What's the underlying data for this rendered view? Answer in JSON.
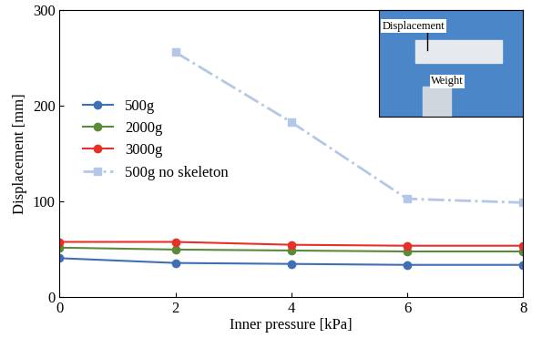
{
  "chart_data": {
    "type": "line",
    "x_label": "Inner pressure [kPa]",
    "y_label": "Displacement [mm]",
    "x": [
      0,
      2,
      4,
      6,
      8
    ],
    "series": [
      {
        "name": "500g",
        "color": "#3f6fb5",
        "marker": "circle",
        "line_style": "solid",
        "values": [
          41,
          36,
          35,
          34,
          34
        ]
      },
      {
        "name": "2000g",
        "color": "#5a8a3a",
        "marker": "circle",
        "line_style": "solid",
        "values": [
          52,
          50,
          49,
          48,
          48
        ]
      },
      {
        "name": "3000g",
        "color": "#e8302a",
        "marker": "circle",
        "line_style": "solid",
        "values": [
          58,
          58,
          55,
          54,
          54
        ]
      },
      {
        "name": "500g no skeleton",
        "color": "#b4c7e7",
        "marker": "square",
        "line_style": "dashdot",
        "values": [
          null,
          256,
          183,
          103,
          99
        ]
      }
    ],
    "xlim": [
      0,
      8
    ],
    "xticks": [
      0,
      2,
      4,
      6,
      8
    ],
    "ylim": [
      0,
      300
    ],
    "yticks": [
      0,
      100,
      200,
      300
    ],
    "legend": "center left",
    "annotations": [
      "Displacement",
      "Weight"
    ]
  }
}
